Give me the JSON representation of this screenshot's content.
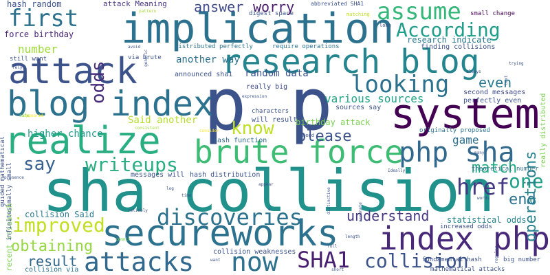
{
  "words": [
    {
      "text": "p p",
      "color": "#3b528b"
    },
    {
      "text": "sha collision",
      "color": "#21918c"
    },
    {
      "text": "implication",
      "color": "#2c728e"
    },
    {
      "text": "system",
      "color": "#440154"
    },
    {
      "text": "attack",
      "color": "#3b528b"
    },
    {
      "text": "realize",
      "color": "#28ae80"
    },
    {
      "text": "research blog",
      "color": "#25858e"
    },
    {
      "text": "blog index",
      "color": "#2c728e"
    },
    {
      "text": "secureworks",
      "color": "#2c728e"
    },
    {
      "text": "brute force",
      "color": "#3dbc74"
    },
    {
      "text": "php sha",
      "color": "#31688e"
    },
    {
      "text": "index php",
      "color": "#482878"
    },
    {
      "text": "attacks",
      "color": "#31688e"
    },
    {
      "text": "now",
      "color": "#2c728e"
    },
    {
      "text": "SHA1",
      "color": "#481f70"
    },
    {
      "text": "collision",
      "color": "#3b528b"
    },
    {
      "text": "discoveries",
      "color": "#2c728e"
    },
    {
      "text": "improved",
      "color": "#c2df23"
    },
    {
      "text": "looking",
      "color": "#2c728e"
    },
    {
      "text": "assume",
      "color": "#35b779"
    },
    {
      "text": "first",
      "color": "#2c728e"
    },
    {
      "text": "According",
      "color": "#1f9e89"
    },
    {
      "text": "odds",
      "color": "#472d7b"
    },
    {
      "text": "writeups",
      "color": "#29af7f"
    },
    {
      "text": "say",
      "color": "#355f8d"
    },
    {
      "text": "know",
      "color": "#bddf26"
    },
    {
      "text": "please",
      "color": "#3b528b"
    },
    {
      "text": "href",
      "color": "#443983"
    },
    {
      "text": "end",
      "color": "#2c728e"
    },
    {
      "text": "one",
      "color": "#1fa088"
    },
    {
      "text": "match",
      "color": "#22a884"
    },
    {
      "text": "even",
      "color": "#2a788e"
    },
    {
      "text": "understand",
      "color": "#453781"
    },
    {
      "text": "obtaining",
      "color": "#95d840"
    },
    {
      "text": "result",
      "color": "#31688e"
    },
    {
      "text": "operations",
      "color": "#26828e"
    },
    {
      "text": "answer",
      "color": "#3e4989"
    },
    {
      "text": "worry",
      "color": "#481a6c"
    },
    {
      "text": "various sources",
      "color": "#20a386"
    },
    {
      "text": "game",
      "color": "#2c728e"
    },
    {
      "text": "number",
      "color": "#a0da39"
    },
    {
      "text": "another way",
      "color": "#2d708e"
    },
    {
      "text": "random data",
      "color": "#3b528b"
    },
    {
      "text": "Said another",
      "color": "#b5de2b"
    },
    {
      "text": "research indicate",
      "color": "#2a788e"
    },
    {
      "text": "statistical odds",
      "color": "#26828e"
    },
    {
      "text": "birthday attack",
      "color": "#7ad151"
    },
    {
      "text": "higher chance",
      "color": "#1f998a"
    },
    {
      "text": "hash random",
      "color": "#3b528b"
    },
    {
      "text": "attack Meaning",
      "color": "#46337e"
    },
    {
      "text": "force birthday",
      "color": "#482475"
    },
    {
      "text": "collision Said",
      "color": "#2a788e"
    },
    {
      "text": "hash function",
      "color": "#31688e"
    },
    {
      "text": "really big",
      "color": "#3e4989"
    },
    {
      "text": "will result",
      "color": "#3b528b"
    },
    {
      "text": "sources say",
      "color": "#3b528b"
    },
    {
      "text": "perfectly even",
      "color": "#3b528b"
    },
    {
      "text": "second messages",
      "color": "#3e4989"
    },
    {
      "text": "announced sha1",
      "color": "#3b528b"
    },
    {
      "text": "finding collisions",
      "color": "#3b528b"
    },
    {
      "text": "originally proposed",
      "color": "#2c728e"
    },
    {
      "text": "theoretical number",
      "color": "#2c728e"
    },
    {
      "text": "messages will",
      "color": "#3b528b"
    },
    {
      "text": "hash distribution",
      "color": "#3b528b"
    },
    {
      "text": "collision weaknesses",
      "color": "#3b528b"
    },
    {
      "text": "mathematical attacks",
      "color": "#3b528b"
    },
    {
      "text": "fundamental hash",
      "color": "#3b528b"
    },
    {
      "text": "increased odds",
      "color": "#3b528b"
    },
    {
      "text": "big number",
      "color": "#3b528b"
    },
    {
      "text": "collision via",
      "color": "#2c728e"
    },
    {
      "text": "small change",
      "color": "#440154"
    },
    {
      "text": "digest space",
      "color": "#3b528b"
    },
    {
      "text": "distributed perfectly",
      "color": "#2c728e"
    },
    {
      "text": "require operations",
      "color": "#2c728e"
    },
    {
      "text": "via brute",
      "color": "#3b528b"
    },
    {
      "text": "still want",
      "color": "#3b528b"
    },
    {
      "text": "recent research",
      "color": "#7ad151"
    },
    {
      "text": "guided mathematical",
      "color": "#3b528b"
    },
    {
      "text": "infinitesimally small",
      "color": "#3b528b"
    },
    {
      "text": "characters",
      "color": "#3b528b"
    },
    {
      "text": "abbreviated SHA1",
      "color": "#3b528b"
    },
    {
      "text": "really distributed",
      "color": "#7ad151"
    },
    {
      "text": "matching",
      "color": "#bddf26"
    },
    {
      "text": "long",
      "color": "#3b528b"
    },
    {
      "text": "pattern",
      "color": "#aadc32"
    },
    {
      "text": "avoid",
      "color": "#3b528b"
    },
    {
      "text": "generic",
      "color": "#3b528b"
    },
    {
      "text": "rely",
      "color": "#3b528b"
    },
    {
      "text": "need",
      "color": "#3b528b"
    },
    {
      "text": "Ideally",
      "color": "#3b528b"
    },
    {
      "text": "many",
      "color": "#3b528b"
    },
    {
      "text": "trying",
      "color": "#3b528b"
    },
    {
      "text": "text",
      "color": "#3b528b"
    },
    {
      "text": "always",
      "color": "#3b528b"
    },
    {
      "text": "expression",
      "color": "#3b528b"
    },
    {
      "text": "consider",
      "color": "#fde725"
    },
    {
      "text": "consistent",
      "color": "#a0da39"
    },
    {
      "text": "appeared",
      "color": "#fde725"
    },
    {
      "text": "safe",
      "color": "#7ad151"
    },
    {
      "text": "presence",
      "color": "#3b528b"
    },
    {
      "text": "log",
      "color": "#3b528b"
    },
    {
      "text": "time",
      "color": "#3b528b"
    },
    {
      "text": "reliably",
      "color": "#3b528b"
    },
    {
      "text": "appear",
      "color": "#3b528b"
    },
    {
      "text": "distinctive",
      "color": "#3b528b"
    },
    {
      "text": "length",
      "color": "#3b528b"
    },
    {
      "text": "words",
      "color": "#3b528b"
    },
    {
      "text": "accurate",
      "color": "#3b528b"
    },
    {
      "text": "regular",
      "color": "#3b528b"
    },
    {
      "text": "full",
      "color": "#3b528b"
    },
    {
      "text": "want",
      "color": "#3b528b"
    },
    {
      "text": "short",
      "color": "#3b528b"
    },
    {
      "text": "commit",
      "color": "#7ad151"
    }
  ]
}
